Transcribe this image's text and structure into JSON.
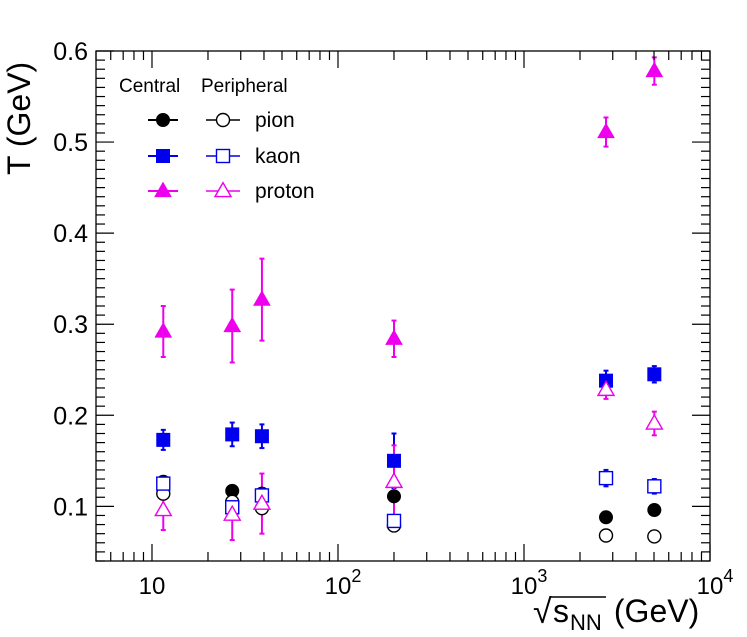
{
  "chart_data": {
    "type": "scatter",
    "title": "",
    "xlabel": "√s_NN (GeV)",
    "xlabel_parts": {
      "radical": "√",
      "main": "s",
      "sub": "NN",
      "unit": " (GeV)"
    },
    "ylabel": "T (GeV)",
    "xscale": "log",
    "xlim": [
      5,
      10000
    ],
    "ylim": [
      0.04,
      0.6
    ],
    "x_ticks": [
      {
        "value": 10,
        "base": "10",
        "exp": ""
      },
      {
        "value": 100,
        "base": "10",
        "exp": "2"
      },
      {
        "value": 1000,
        "base": "10",
        "exp": "3"
      },
      {
        "value": 10000,
        "base": "10",
        "exp": "4"
      }
    ],
    "y_ticks": [
      {
        "value": 0.1,
        "label": "0.1"
      },
      {
        "value": 0.2,
        "label": "0.2"
      },
      {
        "value": 0.3,
        "label": "0.3"
      },
      {
        "value": 0.4,
        "label": "0.4"
      },
      {
        "value": 0.5,
        "label": "0.5"
      },
      {
        "value": 0.6,
        "label": "0.6"
      }
    ],
    "legend": {
      "header_central": "Central",
      "header_peripheral": "Peripheral",
      "entries": [
        "pion",
        "kaon",
        "proton"
      ],
      "position": "top-left"
    },
    "colors": {
      "pion": "#000000",
      "kaon": "#0000ee",
      "proton": "#ee00ee"
    },
    "series": [
      {
        "name": "pion central",
        "particle": "pion",
        "centrality": "central",
        "marker": "circle-filled",
        "points": [
          {
            "x": 11.5,
            "y": 0.127,
            "err": 0.005
          },
          {
            "x": 27,
            "y": 0.117,
            "err": 0.004
          },
          {
            "x": 39,
            "y": 0.114,
            "err": 0.004
          },
          {
            "x": 200,
            "y": 0.111,
            "err": 0.005
          },
          {
            "x": 2760,
            "y": 0.088,
            "err": 0
          },
          {
            "x": 5020,
            "y": 0.096,
            "err": 0
          }
        ]
      },
      {
        "name": "pion peripheral",
        "particle": "pion",
        "centrality": "peripheral",
        "marker": "circle-open",
        "points": [
          {
            "x": 11.5,
            "y": 0.114,
            "err": 0.004
          },
          {
            "x": 27,
            "y": 0.105,
            "err": 0.004
          },
          {
            "x": 39,
            "y": 0.098,
            "err": 0.004
          },
          {
            "x": 200,
            "y": 0.079,
            "err": 0.004
          },
          {
            "x": 2760,
            "y": 0.068,
            "err": 0
          },
          {
            "x": 5020,
            "y": 0.067,
            "err": 0
          }
        ]
      },
      {
        "name": "kaon central",
        "particle": "kaon",
        "centrality": "central",
        "marker": "square-filled",
        "points": [
          {
            "x": 11.5,
            "y": 0.173,
            "err": 0.011
          },
          {
            "x": 27,
            "y": 0.179,
            "err": 0.013
          },
          {
            "x": 39,
            "y": 0.177,
            "err": 0.013
          },
          {
            "x": 200,
            "y": 0.15,
            "err": 0.03
          },
          {
            "x": 2760,
            "y": 0.238,
            "err": 0.011
          },
          {
            "x": 5020,
            "y": 0.245,
            "err": 0.009
          }
        ]
      },
      {
        "name": "kaon peripheral",
        "particle": "kaon",
        "centrality": "peripheral",
        "marker": "square-open",
        "points": [
          {
            "x": 11.5,
            "y": 0.125,
            "err": 0.007
          },
          {
            "x": 27,
            "y": 0.099,
            "err": 0.007
          },
          {
            "x": 39,
            "y": 0.112,
            "err": 0.007
          },
          {
            "x": 200,
            "y": 0.084,
            "err": 0.006
          },
          {
            "x": 2760,
            "y": 0.131,
            "err": 0.009
          },
          {
            "x": 5020,
            "y": 0.122,
            "err": 0.008
          }
        ]
      },
      {
        "name": "proton central",
        "particle": "proton",
        "centrality": "central",
        "marker": "triangle-filled",
        "points": [
          {
            "x": 11.5,
            "y": 0.292,
            "err": 0.028
          },
          {
            "x": 27,
            "y": 0.298,
            "err": 0.04
          },
          {
            "x": 39,
            "y": 0.327,
            "err": 0.045
          },
          {
            "x": 200,
            "y": 0.284,
            "err": 0.02
          },
          {
            "x": 2760,
            "y": 0.511,
            "err": 0.016
          },
          {
            "x": 5020,
            "y": 0.578,
            "err": 0.015
          }
        ]
      },
      {
        "name": "proton peripheral",
        "particle": "proton",
        "centrality": "peripheral",
        "marker": "triangle-open",
        "points": [
          {
            "x": 11.5,
            "y": 0.096,
            "err": 0.022
          },
          {
            "x": 27,
            "y": 0.091,
            "err": 0.028
          },
          {
            "x": 39,
            "y": 0.103,
            "err": 0.033
          },
          {
            "x": 200,
            "y": 0.127,
            "err": 0.04
          },
          {
            "x": 2760,
            "y": 0.228,
            "err": 0.01
          },
          {
            "x": 5020,
            "y": 0.191,
            "err": 0.013
          }
        ]
      }
    ]
  }
}
